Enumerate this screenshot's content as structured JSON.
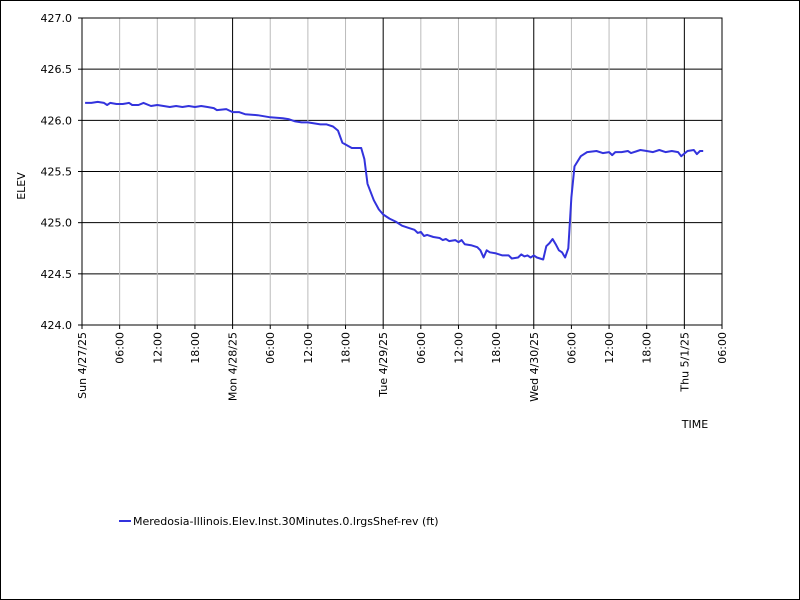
{
  "chart_data": {
    "type": "line",
    "title": "",
    "xlabel": "TIME",
    "ylabel": "ELEV",
    "ylim": [
      424.0,
      427.0
    ],
    "y_ticks": [
      "424.0",
      "424.5",
      "425.0",
      "425.5",
      "426.0",
      "426.5",
      "427.0"
    ],
    "x_range_hours": [
      0,
      102
    ],
    "x_ticks": [
      {
        "h": 0,
        "label": "Sun 4/27/25",
        "major": true
      },
      {
        "h": 6,
        "label": "06:00",
        "major": false
      },
      {
        "h": 12,
        "label": "12:00",
        "major": false
      },
      {
        "h": 18,
        "label": "18:00",
        "major": false
      },
      {
        "h": 24,
        "label": "Mon 4/28/25",
        "major": true
      },
      {
        "h": 30,
        "label": "06:00",
        "major": false
      },
      {
        "h": 36,
        "label": "12:00",
        "major": false
      },
      {
        "h": 42,
        "label": "18:00",
        "major": false
      },
      {
        "h": 48,
        "label": "Tue 4/29/25",
        "major": true
      },
      {
        "h": 54,
        "label": "06:00",
        "major": false
      },
      {
        "h": 60,
        "label": "12:00",
        "major": false
      },
      {
        "h": 66,
        "label": "18:00",
        "major": false
      },
      {
        "h": 72,
        "label": "Wed 4/30/25",
        "major": true
      },
      {
        "h": 78,
        "label": "06:00",
        "major": false
      },
      {
        "h": 84,
        "label": "12:00",
        "major": false
      },
      {
        "h": 90,
        "label": "18:00",
        "major": false
      },
      {
        "h": 96,
        "label": "Thu 5/1/25",
        "major": true
      },
      {
        "h": 102,
        "label": "06:00",
        "major": false
      }
    ],
    "grid": true,
    "legend_position": "bottom-left",
    "series": [
      {
        "name": "Meredosia-Illinois.Elev.Inst.30Minutes.0.lrgsShef-rev (ft)",
        "color": "#3333dd",
        "points": [
          [
            0.5,
            426.17
          ],
          [
            1.5,
            426.17
          ],
          [
            2.5,
            426.18
          ],
          [
            3.5,
            426.17
          ],
          [
            4.0,
            426.15
          ],
          [
            4.5,
            426.17
          ],
          [
            5.5,
            426.16
          ],
          [
            6.5,
            426.16
          ],
          [
            7.5,
            426.17
          ],
          [
            8.0,
            426.15
          ],
          [
            9.0,
            426.15
          ],
          [
            9.8,
            426.17
          ],
          [
            11.0,
            426.14
          ],
          [
            12.0,
            426.15
          ],
          [
            13.0,
            426.14
          ],
          [
            14.0,
            426.13
          ],
          [
            15.0,
            426.14
          ],
          [
            16.0,
            426.13
          ],
          [
            17.0,
            426.14
          ],
          [
            18.0,
            426.13
          ],
          [
            19.0,
            426.14
          ],
          [
            20.0,
            426.13
          ],
          [
            21.0,
            426.12
          ],
          [
            21.5,
            426.1
          ],
          [
            23.0,
            426.11
          ],
          [
            24.0,
            426.08
          ],
          [
            25.0,
            426.08
          ],
          [
            26.0,
            426.06
          ],
          [
            28.0,
            426.05
          ],
          [
            30.0,
            426.03
          ],
          [
            32.0,
            426.02
          ],
          [
            33.0,
            426.01
          ],
          [
            34.0,
            425.99
          ],
          [
            35.0,
            425.98
          ],
          [
            36.0,
            425.98
          ],
          [
            37.0,
            425.97
          ],
          [
            38.0,
            425.96
          ],
          [
            39.0,
            425.96
          ],
          [
            40.0,
            425.94
          ],
          [
            40.8,
            425.9
          ],
          [
            41.5,
            425.78
          ],
          [
            43.0,
            425.73
          ],
          [
            44.5,
            425.73
          ],
          [
            45.0,
            425.62
          ],
          [
            45.5,
            425.38
          ],
          [
            46.5,
            425.22
          ],
          [
            47.3,
            425.13
          ],
          [
            48.0,
            425.08
          ],
          [
            49.0,
            425.04
          ],
          [
            50.0,
            425.01
          ],
          [
            51.0,
            424.97
          ],
          [
            52.0,
            424.95
          ],
          [
            53.0,
            424.93
          ],
          [
            53.5,
            424.9
          ],
          [
            54.0,
            424.91
          ],
          [
            54.5,
            424.87
          ],
          [
            55.0,
            424.88
          ],
          [
            56.0,
            424.86
          ],
          [
            57.0,
            424.85
          ],
          [
            57.5,
            424.83
          ],
          [
            58.0,
            424.84
          ],
          [
            58.5,
            424.82
          ],
          [
            59.5,
            424.83
          ],
          [
            60.0,
            424.81
          ],
          [
            60.5,
            424.83
          ],
          [
            61.0,
            424.79
          ],
          [
            62.0,
            424.78
          ],
          [
            63.0,
            424.76
          ],
          [
            63.5,
            424.73
          ],
          [
            64.0,
            424.66
          ],
          [
            64.5,
            424.73
          ],
          [
            65.0,
            424.71
          ],
          [
            66.0,
            424.7
          ],
          [
            67.0,
            424.68
          ],
          [
            68.0,
            424.68
          ],
          [
            68.5,
            424.65
          ],
          [
            69.5,
            424.66
          ],
          [
            70.0,
            424.69
          ],
          [
            70.5,
            424.67
          ],
          [
            71.0,
            424.68
          ],
          [
            71.5,
            424.66
          ],
          [
            72.0,
            424.68
          ],
          [
            72.5,
            424.66
          ],
          [
            73.5,
            424.64
          ],
          [
            74.0,
            424.77
          ],
          [
            74.5,
            424.8
          ],
          [
            75.0,
            424.84
          ],
          [
            75.5,
            424.79
          ],
          [
            76.0,
            424.73
          ],
          [
            76.5,
            424.71
          ],
          [
            77.0,
            424.66
          ],
          [
            77.5,
            424.75
          ],
          [
            78.0,
            425.25
          ],
          [
            78.5,
            425.55
          ],
          [
            79.5,
            425.65
          ],
          [
            80.5,
            425.69
          ],
          [
            82.0,
            425.7
          ],
          [
            83.0,
            425.68
          ],
          [
            84.0,
            425.69
          ],
          [
            84.5,
            425.66
          ],
          [
            85.0,
            425.69
          ],
          [
            86.0,
            425.69
          ],
          [
            87.0,
            425.7
          ],
          [
            87.5,
            425.68
          ],
          [
            88.5,
            425.7
          ],
          [
            89.0,
            425.71
          ],
          [
            90.0,
            425.7
          ],
          [
            91.0,
            425.69
          ],
          [
            92.0,
            425.71
          ],
          [
            93.0,
            425.69
          ],
          [
            94.0,
            425.7
          ],
          [
            95.0,
            425.69
          ],
          [
            95.5,
            425.65
          ],
          [
            96.5,
            425.7
          ],
          [
            97.5,
            425.71
          ],
          [
            98.0,
            425.67
          ],
          [
            98.5,
            425.7
          ],
          [
            99.0,
            425.7
          ]
        ]
      }
    ]
  }
}
